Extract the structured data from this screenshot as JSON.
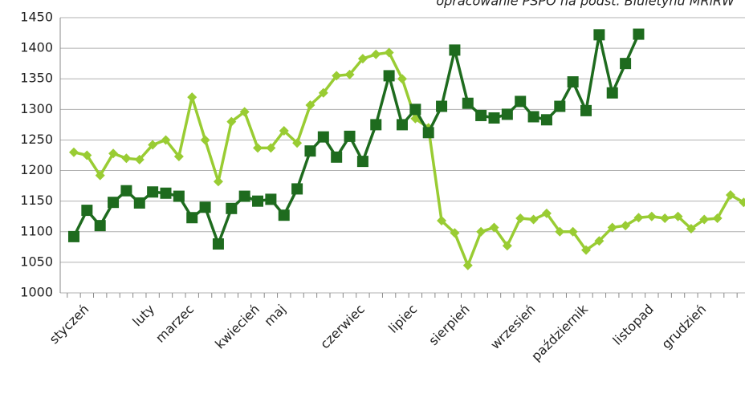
{
  "chart_data": {
    "type": "line",
    "subtitle": "opracowanie PSPO na podst. Biuletynu MRiRW",
    "categories": [
      null,
      "styczeń",
      null,
      null,
      null,
      null,
      "luty",
      null,
      null,
      "marzec",
      null,
      null,
      null,
      null,
      "kwiecień",
      null,
      "maj",
      null,
      null,
      null,
      null,
      null,
      "czerwiec",
      null,
      null,
      null,
      "lipiec",
      null,
      null,
      null,
      "sierpień",
      null,
      null,
      null,
      null,
      "wrzesień",
      null,
      null,
      null,
      "październik",
      null,
      null,
      null,
      null,
      "listopad",
      null,
      null,
      null,
      "grudzień",
      null,
      null,
      null
    ],
    "series": [
      {
        "color": "#99cc33",
        "marker": "diamond",
        "values": [
          1230,
          1225,
          1192,
          1228,
          1220,
          1218,
          1242,
          1250,
          1223,
          1320,
          1250,
          1182,
          1280,
          1296,
          1237,
          1237,
          1265,
          1245,
          1307,
          1327,
          1355,
          1357,
          1383,
          1390,
          1393,
          1350,
          1285,
          1270,
          1118,
          1098,
          1045,
          1100,
          1107,
          1077,
          1122,
          1120,
          1130,
          1100,
          1100,
          1070,
          1085,
          1107,
          1110,
          1123,
          1125,
          1122,
          1125,
          1105,
          1120,
          1122,
          1160,
          1148
        ]
      },
      {
        "color": "#1e6b1e",
        "marker": "square",
        "values": [
          1092,
          1135,
          1110,
          1148,
          1167,
          1147,
          1165,
          1163,
          1158,
          1123,
          1140,
          1080,
          1138,
          1158,
          1150,
          1153,
          1127,
          1170,
          1232,
          1255,
          1222,
          1256,
          1215,
          1275,
          1355,
          1275,
          1300,
          1262,
          1305,
          1397,
          1310,
          1290,
          1286,
          1292,
          1313,
          1288,
          1283,
          1305,
          1345,
          1298,
          1422,
          1327,
          1375,
          1423,
          null,
          null,
          null,
          null,
          null,
          null,
          null,
          null
        ]
      }
    ],
    "ylim": [
      1000,
      1450
    ],
    "yticks": [
      1000,
      1050,
      1100,
      1150,
      1200,
      1250,
      1300,
      1350,
      1400,
      1450
    ],
    "grid": true
  }
}
